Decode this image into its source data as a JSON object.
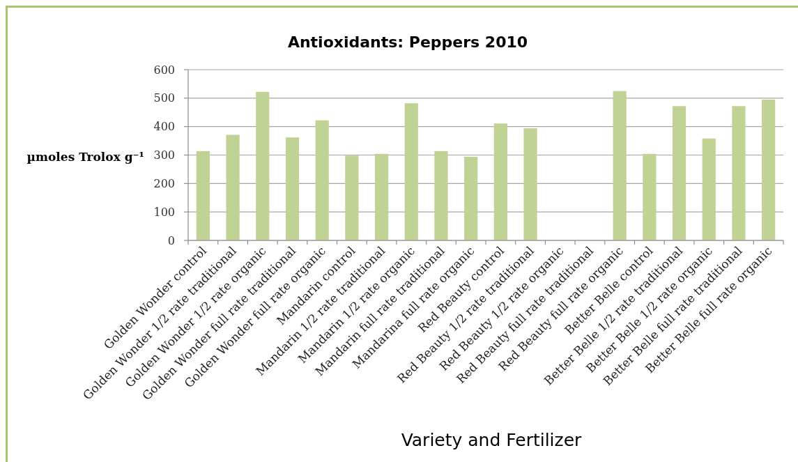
{
  "chart_data": {
    "type": "bar",
    "title": "Antioxidants: Peppers 2010",
    "xlabel": "Variety and Fertilizer",
    "ylabel": "µmoles Trolox g⁻¹",
    "categories": [
      "Golden Wonder control",
      "Golden Wonder 1/2 rate traditional",
      "Golden Wonder 1/2 rate organic",
      "Golden Wonder full rate traditional",
      "Golden Wonder full rate organic",
      "Mandarin control",
      "Mandarin 1/2 rate traditional",
      "Mandarin 1/2 rate organic",
      "Mandarin full rate traditional",
      "Mandarina full rate organic",
      "Red Beauty control",
      "Red Beauty 1/2 rate traditional",
      "Red Beauty 1/2 rate organic",
      "Red Beauty full rate traditional",
      "Red Beauty full rate organic",
      "Better Belle control",
      "Better Belle 1/2 rate traditional",
      "Better Belle 1/2 rate organic",
      "Better Belle full rate traditional",
      "Better Belle full rate organic"
    ],
    "values": [
      314,
      371,
      522,
      362,
      422,
      298,
      304,
      482,
      314,
      294,
      411,
      394,
      null,
      null,
      525,
      304,
      472,
      358,
      472,
      495
    ],
    "color": "#c0d394",
    "ylim": [
      0,
      600
    ],
    "yticks": [
      0,
      100,
      200,
      300,
      400,
      500,
      600
    ],
    "grid": "y"
  }
}
